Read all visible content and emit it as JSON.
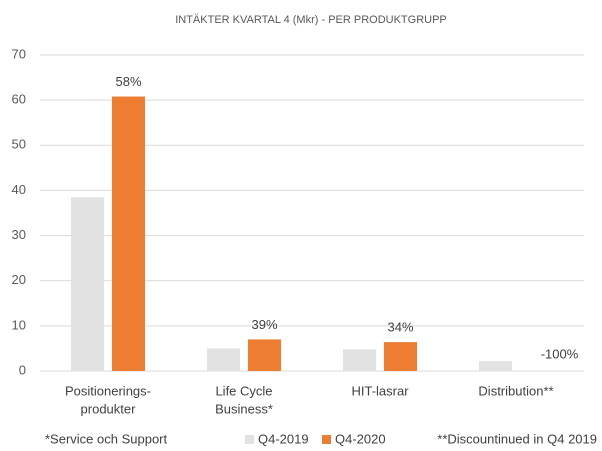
{
  "chart_data": {
    "type": "bar",
    "title": "INTÄKTER KVARTAL 4 (Mkr) -  PER PRODUKTGRUPP",
    "categories": [
      [
        "Positionerings-",
        "produkter"
      ],
      [
        "Life Cycle",
        "Business*"
      ],
      [
        "HIT-lasrar"
      ],
      [
        "Distribution**"
      ]
    ],
    "series": [
      {
        "name": "Q4-2019",
        "color": "#e2e2e2",
        "values": [
          38.5,
          5,
          4.8,
          2.2
        ]
      },
      {
        "name": "Q4-2020",
        "color": "#ed7d31",
        "values": [
          60.8,
          7,
          6.4,
          0
        ]
      }
    ],
    "annotations": [
      "58%",
      "39%",
      "34%",
      "-100%"
    ],
    "ylim": [
      0,
      70
    ],
    "yticks": [
      0,
      10,
      20,
      30,
      40,
      50,
      60,
      70
    ],
    "grid": true,
    "legend": "bottom",
    "footnotes": [
      "*Service och Support",
      "**Discountinued in Q4 2019"
    ]
  }
}
